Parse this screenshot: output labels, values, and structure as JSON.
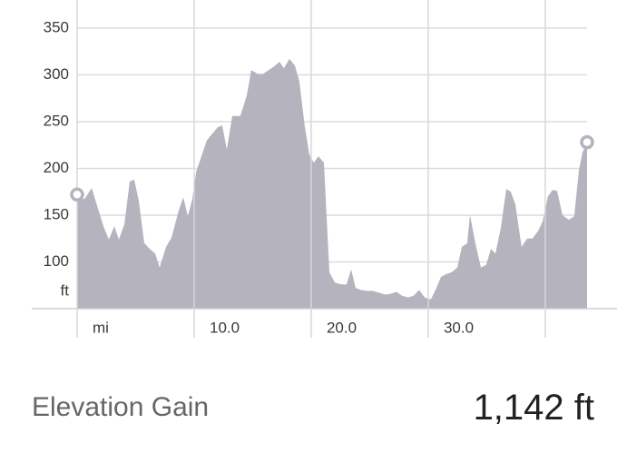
{
  "chart_data": {
    "type": "area",
    "x": [
      0,
      0.62,
      1.24,
      1.78,
      2.25,
      2.71,
      3.18,
      3.57,
      4.03,
      4.5,
      4.88,
      5.27,
      5.74,
      6.28,
      6.67,
      7.05,
      7.6,
      8.06,
      8.68,
      9.07,
      9.46,
      9.84,
      10.16,
      10.62,
      11.09,
      11.55,
      12.02,
      12.4,
      12.79,
      13.26,
      13.95,
      14.5,
      14.88,
      15.43,
      15.89,
      16.36,
      16.82,
      17.29,
      17.67,
      18.14,
      18.6,
      18.99,
      19.46,
      19.84,
      20.23,
      20.62,
      21.09,
      21.55,
      22.02,
      22.56,
      23.02,
      23.41,
      23.8,
      24.26,
      24.81,
      25.27,
      25.81,
      26.36,
      26.82,
      27.29,
      27.75,
      28.29,
      28.76,
      29.22,
      29.69,
      30.23,
      30.7,
      31.09,
      31.55,
      32.02,
      32.48,
      32.87,
      33.33,
      33.57,
      34.03,
      34.5,
      34.96,
      35.35,
      35.74,
      36.2,
      36.67,
      37.05,
      37.44,
      37.98,
      38.45,
      38.91,
      39.38,
      39.77,
      40.23,
      40.62,
      41.01,
      41.47,
      42.02,
      42.48,
      42.87,
      43.18,
      43.57
    ],
    "values": [
      172,
      167,
      179,
      157,
      138,
      124,
      138,
      124,
      140,
      186,
      188,
      165,
      120,
      113,
      109,
      94,
      116,
      126,
      155,
      169,
      149,
      167,
      196,
      213,
      230,
      237,
      244,
      246,
      220,
      256,
      256,
      278,
      305,
      301,
      301,
      305,
      309,
      314,
      307,
      317,
      310,
      293,
      244,
      215,
      206,
      213,
      206,
      89,
      78,
      76,
      76,
      92,
      72,
      70,
      69,
      69,
      67,
      65,
      66,
      68,
      64,
      62,
      64,
      70,
      62,
      60,
      72,
      84,
      87,
      89,
      94,
      116,
      120,
      150,
      120,
      94,
      97,
      114,
      109,
      136,
      178,
      175,
      162,
      116,
      125,
      125,
      133,
      143,
      170,
      177,
      176,
      150,
      145,
      149,
      198,
      217,
      228
    ],
    "color": "#b4b3be",
    "xlim": [
      0,
      43.57
    ],
    "ylim": [
      50,
      380
    ],
    "yticks": [
      100,
      150,
      200,
      250,
      300,
      350
    ],
    "y_unit": "ft",
    "xticks": [
      {
        "value": 0,
        "label": "mi"
      },
      {
        "value": 10,
        "label": "10.0"
      },
      {
        "value": 20,
        "label": "20.0"
      },
      {
        "value": 30,
        "label": "30.0"
      },
      {
        "value": 40,
        "label": null
      }
    ],
    "grid": true,
    "endpoint_markers": true
  },
  "summary": {
    "label": "Elevation Gain",
    "value": "1,142 ft"
  }
}
